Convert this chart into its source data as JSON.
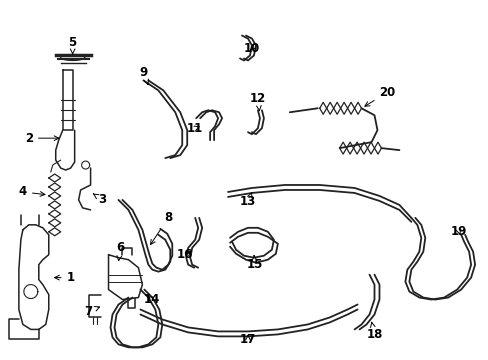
{
  "background_color": "#ffffff",
  "line_color": "#222222",
  "text_color": "#000000",
  "figsize": [
    4.89,
    3.6
  ],
  "dpi": 100,
  "lw_tube": 1.3,
  "lw_part": 1.1,
  "label_fs": 8.5
}
